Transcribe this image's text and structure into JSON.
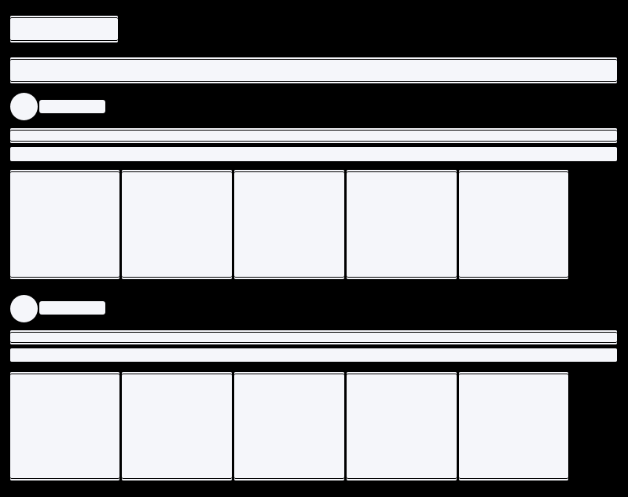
{
  "state": "loading-skeleton",
  "colors": {
    "background": "#000000",
    "placeholder": "#f5f6fa"
  },
  "sections": [
    {
      "cards": 5,
      "lines": 2
    },
    {
      "cards": 5,
      "lines": 2
    }
  ]
}
